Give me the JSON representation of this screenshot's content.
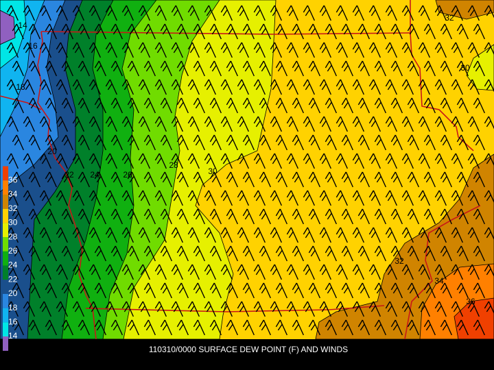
{
  "caption": "110310/0000 SURFACE DEW POINT (F) AND WINDS",
  "colorbar": {
    "levels": [
      14,
      16,
      18,
      20,
      22,
      24,
      26,
      28,
      30,
      32,
      34,
      36
    ],
    "colors": [
      "#9060c0",
      "#00e6e6",
      "#10b4f0",
      "#2a86e0",
      "#1a4f8c",
      "#00802a",
      "#10b010",
      "#70dc00",
      "#e6f000",
      "#ffd200",
      "#d08400",
      "#ff8000",
      "#f04000"
    ]
  },
  "contour_labels": [
    14,
    16,
    18,
    20,
    22,
    24,
    26,
    28,
    30,
    32,
    30,
    32,
    34,
    36
  ]
}
